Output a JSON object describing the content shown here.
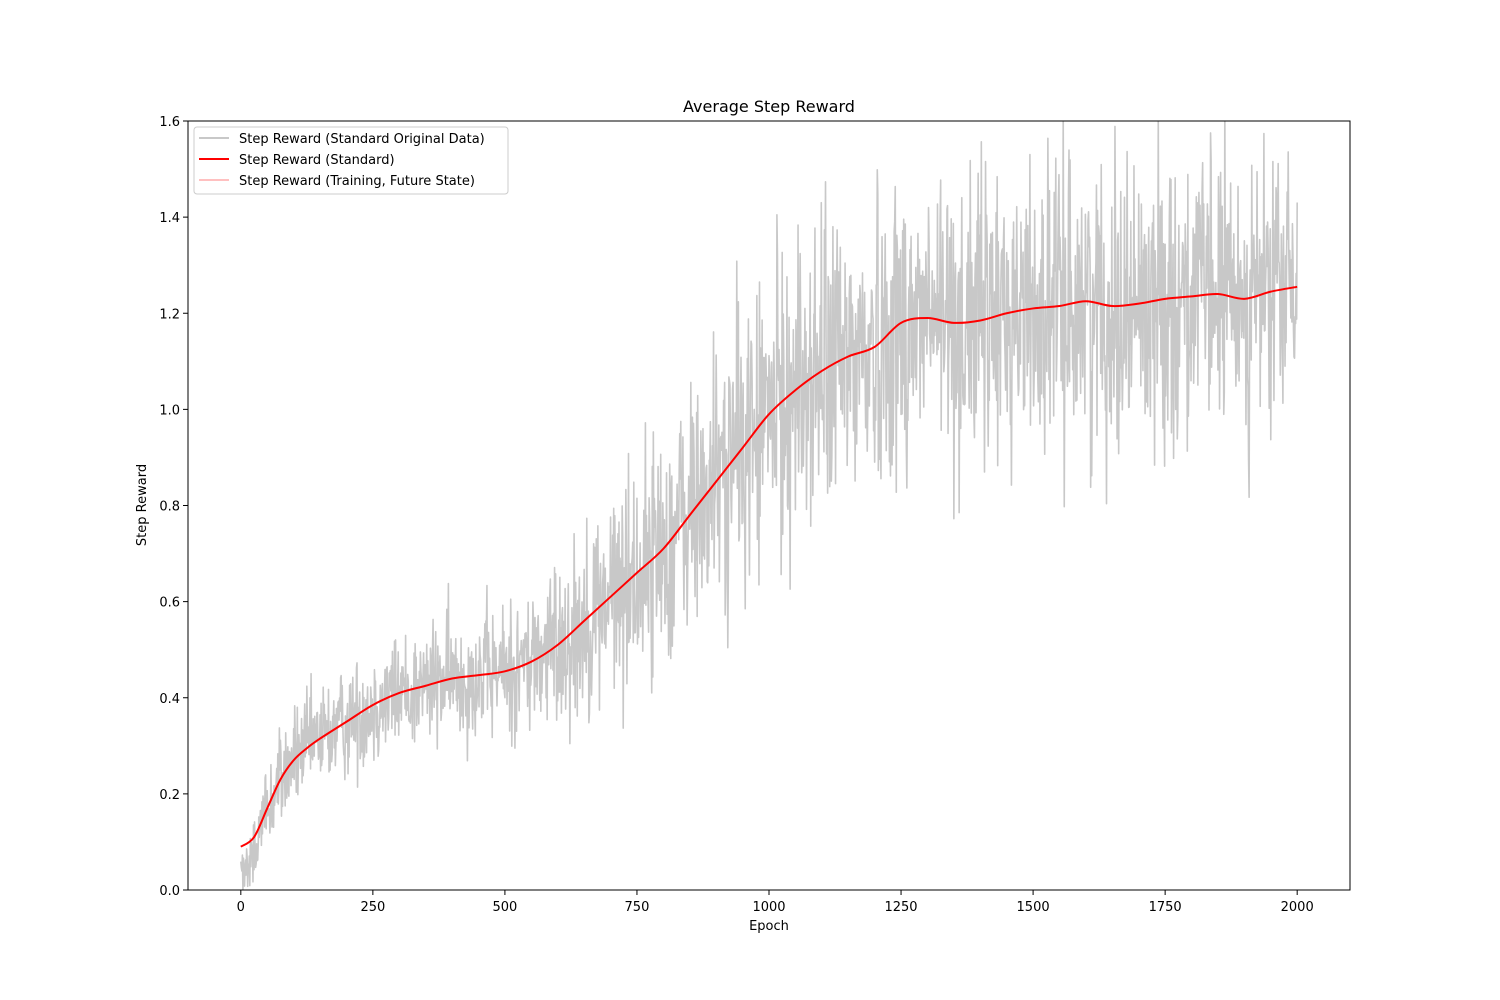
{
  "chart_data": {
    "type": "line",
    "title": "Average Step Reward",
    "xlabel": "Epoch",
    "ylabel": "Step Reward",
    "xlim": [
      -100,
      2100
    ],
    "ylim": [
      0.0,
      1.6
    ],
    "xticks": [
      0,
      250,
      500,
      750,
      1000,
      1250,
      1500,
      1750,
      2000
    ],
    "yticks": [
      0.0,
      0.2,
      0.4,
      0.6,
      0.8,
      1.0,
      1.2,
      1.4,
      1.6
    ],
    "xtick_labels": [
      "0",
      "250",
      "500",
      "750",
      "1000",
      "1250",
      "1500",
      "1750",
      "2000"
    ],
    "ytick_labels": [
      "0.0",
      "0.2",
      "0.4",
      "0.6",
      "0.8",
      "1.0",
      "1.2",
      "1.4",
      "1.6"
    ],
    "grid": false,
    "legend_position": "top-left",
    "series": [
      {
        "name": "Step Reward (Standard Original Data)",
        "color": "#c8c8c8",
        "style": "noisy-raw",
        "noise_amplitude": [
          [
            0,
            0.05
          ],
          [
            250,
            0.06
          ],
          [
            500,
            0.07
          ],
          [
            750,
            0.12
          ],
          [
            1000,
            0.16
          ],
          [
            1250,
            0.16
          ],
          [
            1500,
            0.15
          ],
          [
            1750,
            0.15
          ],
          [
            2000,
            0.14
          ]
        ],
        "x_range": [
          0,
          2000
        ],
        "points": 2001
      },
      {
        "name": "Step Reward (Standard)",
        "color": "#ff0000",
        "x": [
          0,
          25,
          50,
          75,
          100,
          125,
          150,
          200,
          250,
          300,
          350,
          400,
          450,
          500,
          550,
          600,
          650,
          700,
          750,
          800,
          850,
          900,
          950,
          1000,
          1050,
          1100,
          1150,
          1200,
          1250,
          1300,
          1350,
          1400,
          1450,
          1500,
          1550,
          1600,
          1650,
          1700,
          1750,
          1800,
          1850,
          1900,
          1950,
          2000
        ],
        "y": [
          0.09,
          0.11,
          0.17,
          0.23,
          0.27,
          0.295,
          0.315,
          0.35,
          0.385,
          0.41,
          0.425,
          0.44,
          0.447,
          0.455,
          0.475,
          0.51,
          0.56,
          0.61,
          0.66,
          0.71,
          0.78,
          0.85,
          0.92,
          0.99,
          1.04,
          1.08,
          1.11,
          1.13,
          1.18,
          1.19,
          1.18,
          1.185,
          1.2,
          1.21,
          1.215,
          1.225,
          1.215,
          1.22,
          1.23,
          1.235,
          1.24,
          1.23,
          1.245,
          1.255
        ]
      },
      {
        "name": "Step Reward (Training, Future State)",
        "color": "#ffc0c0",
        "x": [],
        "y": []
      }
    ]
  }
}
